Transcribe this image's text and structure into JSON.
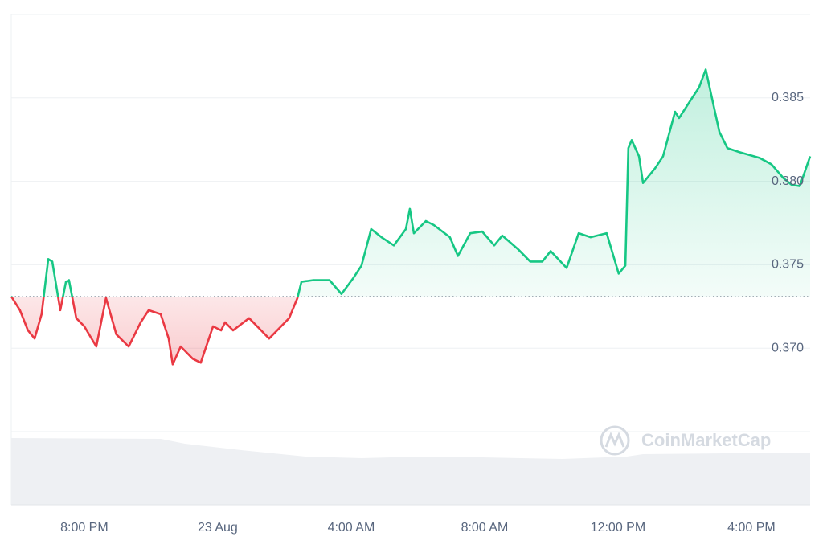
{
  "chart_data": {
    "type": "line",
    "watermark": "CoinMarketCap",
    "x": [
      17.81,
      18.07,
      18.31,
      18.51,
      18.72,
      18.92,
      19.04,
      19.28,
      19.45,
      19.54,
      19.76,
      20.0,
      20.36,
      20.65,
      20.96,
      21.33,
      21.69,
      21.93,
      22.29,
      22.53,
      22.65,
      22.89,
      23.25,
      23.49,
      23.86,
      24.1,
      24.22,
      24.46,
      24.94,
      25.3,
      25.54,
      25.9,
      26.14,
      26.39,
      26.51,
      26.87,
      27.35,
      27.71,
      28.07,
      28.31,
      28.6,
      28.91,
      29.28,
      29.64,
      29.76,
      29.88,
      30.24,
      30.48,
      30.96,
      31.2,
      31.57,
      31.93,
      32.29,
      32.53,
      33.01,
      33.37,
      33.73,
      33.98,
      34.46,
      34.82,
      35.18,
      35.66,
      36.02,
      36.22,
      36.31,
      36.41,
      36.63,
      36.75,
      37.11,
      37.35,
      37.71,
      37.83,
      38.19,
      38.43,
      38.63,
      38.8,
      39.04,
      39.28,
      39.64,
      40.24,
      40.6,
      40.96,
      41.2,
      41.45,
      41.76
    ],
    "values": [
      0.3731,
      0.37228,
      0.37107,
      0.37058,
      0.37204,
      0.37534,
      0.37519,
      0.37228,
      0.37398,
      0.37408,
      0.3718,
      0.37131,
      0.3701,
      0.37301,
      0.37083,
      0.3701,
      0.37155,
      0.37228,
      0.37204,
      0.37058,
      0.36903,
      0.3701,
      0.36937,
      0.36913,
      0.37131,
      0.37107,
      0.37155,
      0.37107,
      0.3718,
      0.37107,
      0.37058,
      0.37131,
      0.3718,
      0.37301,
      0.37398,
      0.37408,
      0.37408,
      0.37325,
      0.37422,
      0.37495,
      0.37714,
      0.37665,
      0.37616,
      0.37714,
      0.37835,
      0.37689,
      0.37762,
      0.37738,
      0.37665,
      0.37553,
      0.37689,
      0.37699,
      0.37616,
      0.37675,
      0.37592,
      0.37519,
      0.37519,
      0.37582,
      0.37481,
      0.37689,
      0.37665,
      0.37689,
      0.37447,
      0.37495,
      0.38199,
      0.38247,
      0.3815,
      0.3799,
      0.38078,
      0.3815,
      0.38417,
      0.38379,
      0.3849,
      0.38563,
      0.3867,
      0.38514,
      0.38296,
      0.38199,
      0.38175,
      0.38141,
      0.38102,
      0.38019,
      0.3798,
      0.37971,
      0.3815
    ],
    "baseline": 0.3731,
    "up_color": "#16c784",
    "down_color": "#ea3943",
    "xlim": [
      17.81,
      41.76
    ],
    "xticks": [
      {
        "value": 20,
        "label": "8:00 PM"
      },
      {
        "value": 24,
        "label": "23 Aug"
      },
      {
        "value": 28,
        "label": "4:00 AM"
      },
      {
        "value": 32,
        "label": "8:00 AM"
      },
      {
        "value": 36,
        "label": "12:00 PM"
      },
      {
        "value": 40,
        "label": "4:00 PM"
      }
    ],
    "ylim": [
      0.365,
      0.39
    ],
    "yticks": [
      {
        "value": 0.37,
        "label": "0.370"
      },
      0.375,
      {
        "value": 0.38,
        "label": "0.380"
      },
      0.385
    ],
    "grid": true
  }
}
